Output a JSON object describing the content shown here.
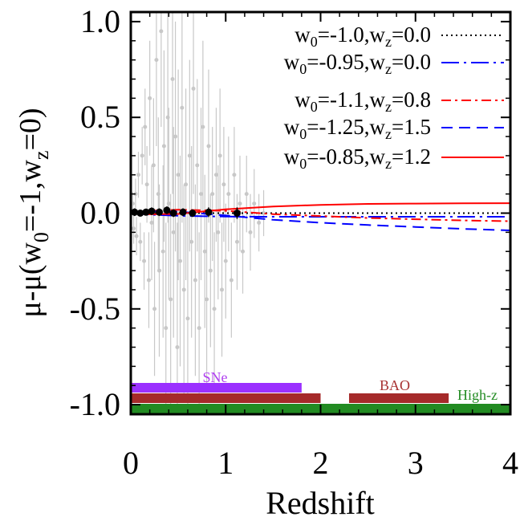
{
  "chart_data": {
    "type": "line",
    "xlabel": "Redshift",
    "ylabel_parts": [
      "μ-μ(w",
      "0",
      "=-1,w",
      "z",
      "=0)"
    ],
    "xlim": [
      0,
      4
    ],
    "ylim": [
      -1.05,
      1.05
    ],
    "x_ticks": [
      0,
      1,
      2,
      3,
      4
    ],
    "x_tick_labels": [
      "0",
      "1",
      "2",
      "3",
      "4"
    ],
    "y_ticks": [
      -1.0,
      -0.5,
      0.0,
      0.5,
      1.0
    ],
    "y_tick_labels": [
      "-1.0",
      "-0.5",
      "0.0",
      "0.5",
      "1.0"
    ],
    "legend_position": "top-right",
    "series": [
      {
        "label_parts": [
          "w",
          "0",
          "=-1.0,w",
          "z",
          "=0.0"
        ],
        "color": "#000000",
        "dash": "dotted",
        "x": [
          0,
          4
        ],
        "y": [
          0.0,
          0.0
        ]
      },
      {
        "label_parts": [
          "w",
          "0",
          "=-0.95,w",
          "z",
          "=0.0"
        ],
        "color": "#0000ff",
        "dash": "longdash-dot",
        "x": [
          0,
          0.2,
          0.5,
          1.0,
          1.5,
          2.0,
          2.5,
          3.0,
          3.5,
          4.0
        ],
        "y": [
          0,
          -0.008,
          -0.014,
          -0.018,
          -0.019,
          -0.019,
          -0.019,
          -0.019,
          -0.019,
          -0.019
        ]
      },
      {
        "label_parts": [
          "w",
          "0",
          "=-1.1,w",
          "z",
          "=0.8"
        ],
        "color": "#ff0000",
        "dash": "dash-dot",
        "x": [
          0,
          0.2,
          0.5,
          1.0,
          1.5,
          2.0,
          2.5,
          3.0,
          3.5,
          4.0
        ],
        "y": [
          0,
          0.012,
          0.018,
          0.012,
          -0.005,
          -0.015,
          -0.025,
          -0.032,
          -0.038,
          -0.042
        ]
      },
      {
        "label_parts": [
          "w",
          "0",
          "=-1.25,w",
          "z",
          "=1.5"
        ],
        "color": "#0000ff",
        "dash": "dashed",
        "x": [
          0,
          0.2,
          0.5,
          1.0,
          1.5,
          2.0,
          2.5,
          3.0,
          3.5,
          4.0
        ],
        "y": [
          0,
          0.01,
          0.008,
          -0.012,
          -0.035,
          -0.05,
          -0.062,
          -0.072,
          -0.082,
          -0.09
        ]
      },
      {
        "label_parts": [
          "w",
          "0",
          "=-0.85,w",
          "z",
          "=1.2"
        ],
        "color": "#ff0000",
        "dash": "solid",
        "x": [
          0,
          0.2,
          0.5,
          1.0,
          1.5,
          2.0,
          2.5,
          3.0,
          3.5,
          4.0
        ],
        "y": [
          0,
          -0.006,
          -0.004,
          0.02,
          0.035,
          0.043,
          0.048,
          0.05,
          0.051,
          0.052
        ]
      }
    ],
    "binned_points": {
      "color": "#000000",
      "x": [
        0.04,
        0.1,
        0.16,
        0.22,
        0.3,
        0.38,
        0.45,
        0.55,
        0.65,
        0.82,
        1.12
      ],
      "y": [
        0.005,
        0.0,
        0.005,
        0.01,
        0.005,
        0.015,
        0.0,
        0.005,
        0.0,
        0.005,
        0.0
      ],
      "err": [
        0.02,
        0.015,
        0.015,
        0.02,
        0.02,
        0.02,
        0.02,
        0.02,
        0.02,
        0.025,
        0.03
      ]
    },
    "sne_scatter": {
      "color": "#c8c8c8",
      "x": [
        0.02,
        0.03,
        0.05,
        0.06,
        0.08,
        0.1,
        0.12,
        0.14,
        0.15,
        0.17,
        0.19,
        0.2,
        0.22,
        0.24,
        0.25,
        0.27,
        0.29,
        0.3,
        0.32,
        0.34,
        0.35,
        0.37,
        0.39,
        0.4,
        0.42,
        0.44,
        0.45,
        0.47,
        0.49,
        0.5,
        0.52,
        0.54,
        0.56,
        0.58,
        0.6,
        0.62,
        0.64,
        0.66,
        0.68,
        0.7,
        0.72,
        0.74,
        0.76,
        0.78,
        0.8,
        0.82,
        0.84,
        0.86,
        0.88,
        0.9,
        0.92,
        0.94,
        0.96,
        0.98,
        1.0,
        1.03,
        1.06,
        1.09,
        1.12,
        1.15,
        1.18,
        1.22,
        1.26,
        1.3,
        1.35,
        1.4
      ],
      "y": [
        0.05,
        -0.08,
        0.1,
        -0.12,
        0.2,
        -0.15,
        0.3,
        -0.25,
        0.45,
        0.15,
        -0.35,
        0.6,
        -0.05,
        0.25,
        -0.5,
        0.8,
        0.1,
        -0.3,
        0.95,
        -0.2,
        0.35,
        -0.6,
        0.5,
        0.05,
        -0.45,
        0.7,
        -0.1,
        0.4,
        -0.7,
        0.2,
        -0.25,
        0.55,
        -0.4,
        0.15,
        -0.55,
        0.3,
        -0.15,
        0.65,
        -0.35,
        0.25,
        -0.6,
        0.1,
        0.45,
        -0.2,
        -0.45,
        0.35,
        -0.3,
        0.1,
        -0.5,
        0.2,
        -0.1,
        0.3,
        -0.4,
        0.15,
        -0.25,
        0.1,
        -0.35,
        0.2,
        -0.15,
        0.05,
        -0.2,
        0.1,
        -0.1,
        0.05,
        -0.05,
        0.0
      ],
      "err": [
        0.06,
        0.08,
        0.08,
        0.1,
        0.12,
        0.1,
        0.15,
        0.15,
        0.2,
        0.2,
        0.25,
        0.3,
        0.3,
        0.35,
        0.35,
        0.45,
        0.4,
        0.45,
        0.5,
        0.45,
        0.5,
        0.55,
        0.55,
        0.5,
        0.55,
        0.6,
        0.55,
        0.6,
        0.65,
        0.55,
        0.55,
        0.6,
        0.55,
        0.5,
        0.55,
        0.5,
        0.5,
        0.55,
        0.5,
        0.45,
        0.5,
        0.45,
        0.45,
        0.4,
        0.45,
        0.4,
        0.4,
        0.35,
        0.4,
        0.35,
        0.35,
        0.35,
        0.35,
        0.3,
        0.3,
        0.3,
        0.3,
        0.25,
        0.25,
        0.25,
        0.22,
        0.2,
        0.2,
        0.18,
        0.15,
        0.12
      ]
    },
    "range_bars": [
      {
        "name": "SNe",
        "label_color": "#b040f0",
        "color": "#9b30ff",
        "x_start": 0.0,
        "x_end": 1.8,
        "level": 3
      },
      {
        "name": "BAO",
        "label_color": "#a83232",
        "color": "#a52a2a",
        "segments": [
          [
            0.0,
            2.0
          ],
          [
            2.3,
            3.35
          ]
        ],
        "level": 2
      },
      {
        "name": "High-z",
        "label_color": "#228b22",
        "color": "#228b22",
        "x_start": 0.0,
        "x_end": 4.0,
        "level": 1
      }
    ]
  }
}
